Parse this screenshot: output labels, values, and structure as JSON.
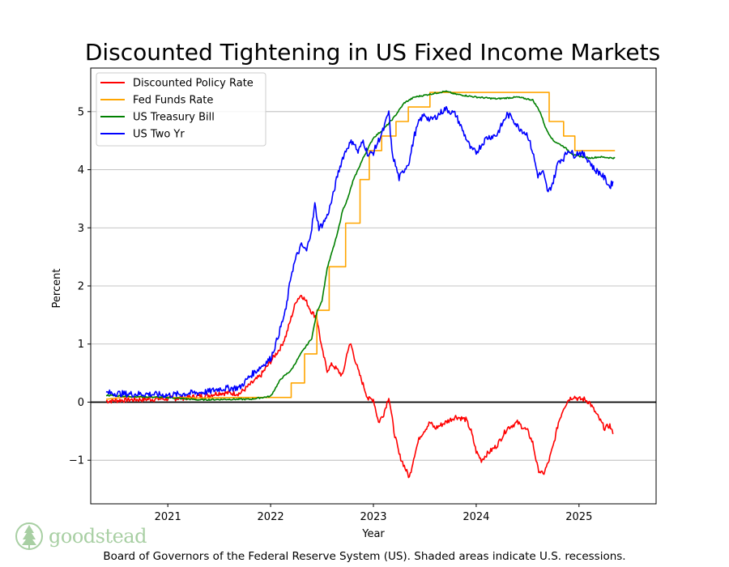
{
  "chart_data": {
    "type": "line",
    "title": "Discounted Tightening in US Fixed Income Markets",
    "xlabel": "Year",
    "ylabel": "Percent",
    "xlim": [
      2020.25,
      2025.75
    ],
    "ylim": [
      -1.75,
      5.75
    ],
    "x_ticks": [
      2021,
      2022,
      2023,
      2024,
      2025
    ],
    "x_tick_labels": [
      "2021",
      "2022",
      "2023",
      "2024",
      "2025"
    ],
    "y_ticks": [
      -1,
      0,
      1,
      2,
      3,
      4,
      5
    ],
    "y_tick_labels": [
      "−1",
      "0",
      "1",
      "2",
      "3",
      "4",
      "5"
    ],
    "grid": "horizontal",
    "zero_line": true,
    "legend_position": "top-left",
    "series": [
      {
        "name": "Discounted Policy Rate",
        "color": "#ff0000",
        "points": [
          [
            2020.4,
            0.02
          ],
          [
            2020.6,
            0.04
          ],
          [
            2020.8,
            0.05
          ],
          [
            2021.0,
            0.06
          ],
          [
            2021.2,
            0.08
          ],
          [
            2021.4,
            0.12
          ],
          [
            2021.5,
            0.16
          ],
          [
            2021.7,
            0.15
          ],
          [
            2021.8,
            0.3
          ],
          [
            2021.9,
            0.45
          ],
          [
            2022.0,
            0.7
          ],
          [
            2022.1,
            0.95
          ],
          [
            2022.15,
            1.15
          ],
          [
            2022.2,
            1.45
          ],
          [
            2022.25,
            1.75
          ],
          [
            2022.3,
            1.85
          ],
          [
            2022.35,
            1.72
          ],
          [
            2022.4,
            1.55
          ],
          [
            2022.45,
            1.45
          ],
          [
            2022.5,
            0.9
          ],
          [
            2022.55,
            0.55
          ],
          [
            2022.6,
            0.65
          ],
          [
            2022.7,
            0.45
          ],
          [
            2022.75,
            0.9
          ],
          [
            2022.78,
            1.0
          ],
          [
            2022.85,
            0.55
          ],
          [
            2022.9,
            0.3
          ],
          [
            2022.95,
            0.05
          ],
          [
            2023.0,
            0.05
          ],
          [
            2023.05,
            -0.35
          ],
          [
            2023.1,
            -0.2
          ],
          [
            2023.15,
            0.1
          ],
          [
            2023.2,
            -0.5
          ],
          [
            2023.25,
            -0.9
          ],
          [
            2023.3,
            -1.1
          ],
          [
            2023.35,
            -1.3
          ],
          [
            2023.4,
            -0.9
          ],
          [
            2023.45,
            -0.6
          ],
          [
            2023.55,
            -0.35
          ],
          [
            2023.6,
            -0.45
          ],
          [
            2023.7,
            -0.35
          ],
          [
            2023.8,
            -0.25
          ],
          [
            2023.9,
            -0.3
          ],
          [
            2023.95,
            -0.5
          ],
          [
            2024.0,
            -0.85
          ],
          [
            2024.05,
            -1.0
          ],
          [
            2024.1,
            -0.9
          ],
          [
            2024.2,
            -0.75
          ],
          [
            2024.25,
            -0.6
          ],
          [
            2024.3,
            -0.45
          ],
          [
            2024.4,
            -0.35
          ],
          [
            2024.5,
            -0.5
          ],
          [
            2024.55,
            -0.7
          ],
          [
            2024.6,
            -1.15
          ],
          [
            2024.65,
            -1.25
          ],
          [
            2024.7,
            -1.05
          ],
          [
            2024.75,
            -0.75
          ],
          [
            2024.8,
            -0.35
          ],
          [
            2024.85,
            -0.1
          ],
          [
            2024.9,
            0.05
          ],
          [
            2024.95,
            0.1
          ],
          [
            2025.0,
            0.05
          ],
          [
            2025.05,
            0.05
          ],
          [
            2025.1,
            0.0
          ],
          [
            2025.15,
            -0.15
          ],
          [
            2025.2,
            -0.3
          ],
          [
            2025.25,
            -0.45
          ],
          [
            2025.3,
            -0.4
          ],
          [
            2025.33,
            -0.55
          ]
        ]
      },
      {
        "name": "Fed Funds Rate",
        "color": "#ffa500",
        "points": [
          [
            2020.4,
            0.05
          ],
          [
            2020.6,
            0.09
          ],
          [
            2021.0,
            0.08
          ],
          [
            2021.3,
            0.07
          ],
          [
            2021.7,
            0.08
          ],
          [
            2022.2,
            0.08
          ],
          [
            2022.2,
            0.33
          ],
          [
            2022.33,
            0.33
          ],
          [
            2022.33,
            0.83
          ],
          [
            2022.45,
            0.83
          ],
          [
            2022.45,
            1.58
          ],
          [
            2022.57,
            1.58
          ],
          [
            2022.57,
            2.33
          ],
          [
            2022.73,
            2.33
          ],
          [
            2022.73,
            3.08
          ],
          [
            2022.87,
            3.08
          ],
          [
            2022.87,
            3.83
          ],
          [
            2022.96,
            3.83
          ],
          [
            2022.96,
            4.33
          ],
          [
            2023.08,
            4.33
          ],
          [
            2023.08,
            4.58
          ],
          [
            2023.22,
            4.58
          ],
          [
            2023.22,
            4.83
          ],
          [
            2023.34,
            4.83
          ],
          [
            2023.34,
            5.08
          ],
          [
            2023.55,
            5.08
          ],
          [
            2023.55,
            5.33
          ],
          [
            2024.71,
            5.33
          ],
          [
            2024.71,
            4.83
          ],
          [
            2024.85,
            4.83
          ],
          [
            2024.85,
            4.58
          ],
          [
            2024.96,
            4.58
          ],
          [
            2024.96,
            4.33
          ],
          [
            2025.35,
            4.33
          ]
        ]
      },
      {
        "name": "US Treasury Bill",
        "color": "#008000",
        "points": [
          [
            2020.4,
            0.12
          ],
          [
            2020.6,
            0.1
          ],
          [
            2020.8,
            0.09
          ],
          [
            2021.0,
            0.08
          ],
          [
            2021.3,
            0.04
          ],
          [
            2021.6,
            0.05
          ],
          [
            2021.8,
            0.05
          ],
          [
            2022.0,
            0.1
          ],
          [
            2022.1,
            0.4
          ],
          [
            2022.2,
            0.55
          ],
          [
            2022.3,
            0.85
          ],
          [
            2022.4,
            1.1
          ],
          [
            2022.45,
            1.55
          ],
          [
            2022.5,
            1.75
          ],
          [
            2022.55,
            2.3
          ],
          [
            2022.6,
            2.6
          ],
          [
            2022.65,
            2.9
          ],
          [
            2022.7,
            3.3
          ],
          [
            2022.75,
            3.5
          ],
          [
            2022.8,
            3.8
          ],
          [
            2022.9,
            4.2
          ],
          [
            2023.0,
            4.55
          ],
          [
            2023.1,
            4.7
          ],
          [
            2023.2,
            4.9
          ],
          [
            2023.3,
            5.15
          ],
          [
            2023.4,
            5.25
          ],
          [
            2023.55,
            5.3
          ],
          [
            2023.7,
            5.35
          ],
          [
            2023.8,
            5.3
          ],
          [
            2024.0,
            5.25
          ],
          [
            2024.2,
            5.22
          ],
          [
            2024.4,
            5.25
          ],
          [
            2024.55,
            5.2
          ],
          [
            2024.62,
            5.0
          ],
          [
            2024.68,
            4.7
          ],
          [
            2024.75,
            4.5
          ],
          [
            2024.85,
            4.4
          ],
          [
            2024.95,
            4.25
          ],
          [
            2025.1,
            4.2
          ],
          [
            2025.2,
            4.22
          ],
          [
            2025.35,
            4.2
          ]
        ]
      },
      {
        "name": "US Two Yr",
        "color": "#0000ff",
        "points": [
          [
            2020.4,
            0.16
          ],
          [
            2020.6,
            0.14
          ],
          [
            2020.8,
            0.14
          ],
          [
            2021.0,
            0.12
          ],
          [
            2021.2,
            0.15
          ],
          [
            2021.4,
            0.18
          ],
          [
            2021.5,
            0.23
          ],
          [
            2021.7,
            0.25
          ],
          [
            2021.8,
            0.45
          ],
          [
            2021.9,
            0.6
          ],
          [
            2022.0,
            0.75
          ],
          [
            2022.05,
            1.0
          ],
          [
            2022.1,
            1.3
          ],
          [
            2022.15,
            1.6
          ],
          [
            2022.2,
            2.2
          ],
          [
            2022.25,
            2.5
          ],
          [
            2022.3,
            2.7
          ],
          [
            2022.35,
            2.6
          ],
          [
            2022.4,
            3.0
          ],
          [
            2022.43,
            3.4
          ],
          [
            2022.47,
            3.0
          ],
          [
            2022.5,
            3.05
          ],
          [
            2022.55,
            3.2
          ],
          [
            2022.6,
            3.5
          ],
          [
            2022.65,
            3.9
          ],
          [
            2022.7,
            4.2
          ],
          [
            2022.75,
            4.4
          ],
          [
            2022.8,
            4.5
          ],
          [
            2022.85,
            4.3
          ],
          [
            2022.9,
            4.5
          ],
          [
            2022.95,
            4.25
          ],
          [
            2023.0,
            4.3
          ],
          [
            2023.05,
            4.5
          ],
          [
            2023.1,
            4.7
          ],
          [
            2023.15,
            5.0
          ],
          [
            2023.18,
            4.3
          ],
          [
            2023.25,
            3.85
          ],
          [
            2023.3,
            4.0
          ],
          [
            2023.35,
            4.15
          ],
          [
            2023.4,
            4.6
          ],
          [
            2023.45,
            4.85
          ],
          [
            2023.5,
            4.95
          ],
          [
            2023.55,
            4.85
          ],
          [
            2023.6,
            4.9
          ],
          [
            2023.7,
            5.05
          ],
          [
            2023.8,
            4.95
          ],
          [
            2023.9,
            4.55
          ],
          [
            2023.95,
            4.35
          ],
          [
            2024.0,
            4.3
          ],
          [
            2024.1,
            4.55
          ],
          [
            2024.2,
            4.6
          ],
          [
            2024.3,
            4.95
          ],
          [
            2024.35,
            4.9
          ],
          [
            2024.4,
            4.75
          ],
          [
            2024.5,
            4.6
          ],
          [
            2024.55,
            4.3
          ],
          [
            2024.6,
            3.9
          ],
          [
            2024.65,
            3.95
          ],
          [
            2024.7,
            3.6
          ],
          [
            2024.75,
            3.8
          ],
          [
            2024.8,
            4.15
          ],
          [
            2024.85,
            4.2
          ],
          [
            2024.9,
            4.35
          ],
          [
            2024.95,
            4.25
          ],
          [
            2025.0,
            4.3
          ],
          [
            2025.05,
            4.25
          ],
          [
            2025.1,
            4.15
          ],
          [
            2025.15,
            4.0
          ],
          [
            2025.2,
            3.95
          ],
          [
            2025.25,
            3.85
          ],
          [
            2025.3,
            3.7
          ],
          [
            2025.33,
            3.8
          ]
        ]
      }
    ]
  },
  "footer": "Board of Governors of the Federal Reserve System (US). Shaded areas indicate U.S. recessions.",
  "logo": {
    "text": "goodstead",
    "color": "#a8cfa3"
  }
}
